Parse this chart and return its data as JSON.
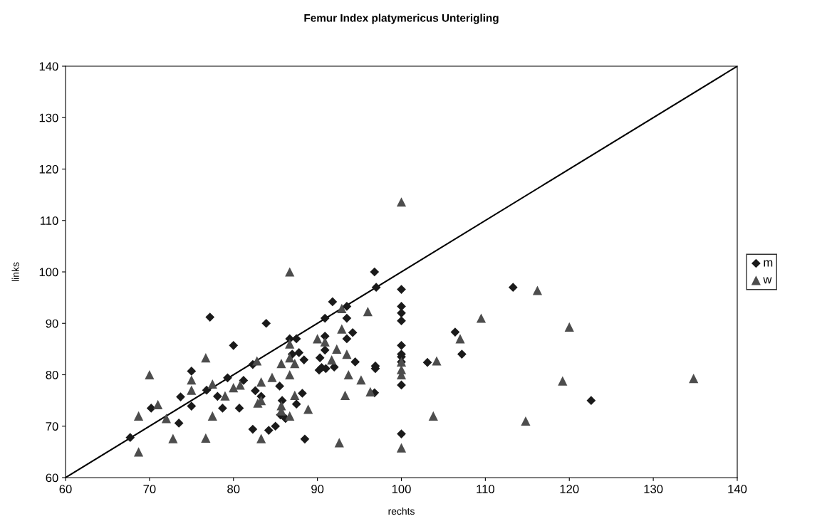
{
  "chart_data": {
    "type": "scatter",
    "title": "Femur Index platymericus Unterigling",
    "xlabel": "rechts",
    "ylabel": "links",
    "xlim": [
      60,
      140
    ],
    "xticks": [
      60,
      70,
      80,
      90,
      100,
      110,
      120,
      130,
      140
    ],
    "ylim": [
      60,
      140
    ],
    "yticks": [
      60,
      70,
      80,
      90,
      100,
      110,
      120,
      130,
      140
    ],
    "grid": false,
    "legend": "right",
    "series": [
      {
        "name": "m",
        "color": "#1a1a1a",
        "marker": "diamond",
        "x": [
          67.7,
          70.2,
          73.5,
          73.7,
          75,
          75,
          76.8,
          77.2,
          78.1,
          78.7,
          79.3,
          80,
          80.7,
          81.2,
          82.3,
          82.3,
          82.6,
          83.3,
          83.9,
          84.2,
          85,
          85.5,
          85.6,
          85.8,
          86.2,
          86.7,
          87,
          87.5,
          87.5,
          87.8,
          88.2,
          88.4,
          88.5,
          90.3,
          90.2,
          90.5,
          90.9,
          90.9,
          90.9,
          91,
          91.8,
          92,
          93.5,
          93.5,
          93.5,
          94.2,
          94.5,
          96.8,
          97,
          96.9,
          96.9,
          96.8,
          100,
          100,
          100,
          100,
          100,
          100,
          100,
          100,
          100,
          100,
          103.1,
          106.4,
          107.2,
          113.3,
          122.6
        ],
        "values": [
          67.8,
          73.5,
          70.6,
          75.7,
          80.7,
          73.9,
          77,
          91.2,
          75.8,
          73.5,
          79.4,
          85.7,
          73.5,
          78.9,
          82,
          69.4,
          76.9,
          75.8,
          90,
          69.2,
          70,
          77.8,
          72.2,
          75,
          71.5,
          87,
          84,
          87,
          74.3,
          84.3,
          76.4,
          82.9,
          67.5,
          83.3,
          80.9,
          81.4,
          91,
          87.5,
          84.8,
          81.2,
          94.2,
          81.5,
          93.3,
          91,
          87,
          88.2,
          82.5,
          100,
          97,
          81.7,
          81.2,
          76.5,
          96.6,
          93.3,
          92,
          90.5,
          85.7,
          84,
          83.5,
          82.5,
          78,
          68.5,
          82.4,
          88.3,
          84,
          97,
          75
        ]
      },
      {
        "name": "w",
        "color": "#4d4d4d",
        "marker": "triangle",
        "x": [
          68.7,
          68.7,
          70,
          71,
          72,
          72.8,
          75,
          75,
          76.7,
          76.7,
          77.5,
          77.5,
          79,
          80,
          80.8,
          82.8,
          82.9,
          83.3,
          83.3,
          83.3,
          84.6,
          85.7,
          85.7,
          85.7,
          86.7,
          86.7,
          86.7,
          86.7,
          86.7,
          87.3,
          87.3,
          88.9,
          90,
          90.9,
          91.7,
          92.3,
          92.6,
          92.9,
          92.9,
          93.3,
          93.5,
          93.7,
          95.2,
          96,
          96.3,
          100,
          100,
          100,
          100,
          100,
          103.8,
          104.2,
          107,
          109.5,
          114.8,
          116.2,
          119.2,
          120,
          134.8
        ],
        "values": [
          65,
          72,
          80,
          74.2,
          71.5,
          67.6,
          79,
          77,
          83.3,
          67.7,
          78.2,
          72,
          75.9,
          77.5,
          78,
          82.7,
          74.5,
          75,
          78.6,
          67.6,
          79.5,
          82.2,
          73,
          74,
          100,
          86,
          83.3,
          80,
          72,
          76,
          82.2,
          73.3,
          87,
          86.4,
          82.9,
          85,
          66.8,
          92.9,
          88.9,
          76,
          84,
          80,
          79,
          92.3,
          76.7,
          113.6,
          82.5,
          81,
          80,
          65.8,
          72,
          82.7,
          87,
          91,
          71,
          96.4,
          78.8,
          89.3,
          79.3
        ]
      },
      {
        "type": "line",
        "color": "#000000",
        "marker": "none",
        "line_style": "solid",
        "x": [
          60,
          140
        ],
        "values": [
          60,
          140
        ]
      }
    ]
  }
}
